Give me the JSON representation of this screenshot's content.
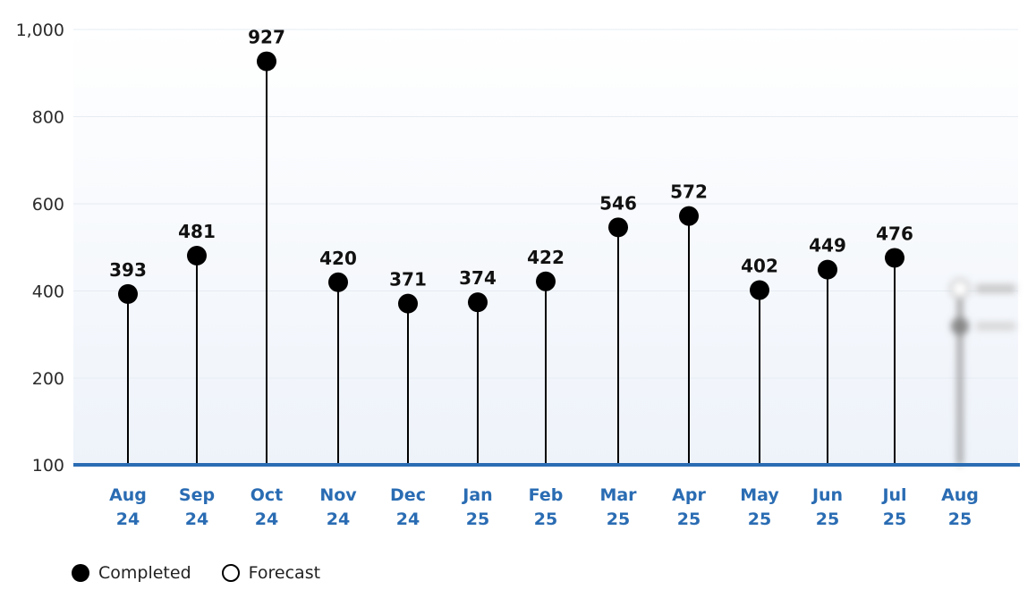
{
  "chart_data": {
    "type": "lollipop",
    "categories": [
      [
        "Aug",
        "24"
      ],
      [
        "Sep",
        "24"
      ],
      [
        "Oct",
        "24"
      ],
      [
        "Nov",
        "24"
      ],
      [
        "Dec",
        "24"
      ],
      [
        "Jan",
        "25"
      ],
      [
        "Feb",
        "25"
      ],
      [
        "Mar",
        "25"
      ],
      [
        "Apr",
        "25"
      ],
      [
        "May",
        "25"
      ],
      [
        "Jun",
        "25"
      ],
      [
        "Jul",
        "25"
      ],
      [
        "Aug",
        "25"
      ]
    ],
    "series": [
      {
        "name": "Completed",
        "values": [
          393,
          481,
          927,
          420,
          371,
          374,
          422,
          546,
          572,
          402,
          449,
          476,
          null
        ]
      }
    ],
    "forecast_blurred": {
      "category_index": 12
    },
    "y_ticks": [
      "100",
      "200",
      "400",
      "600",
      "800",
      "1,000"
    ],
    "ylim": [
      100,
      1000
    ],
    "grid": true,
    "legend": {
      "placement": "bottom-left",
      "items": [
        "Completed",
        "Forecast"
      ]
    },
    "colors": {
      "axis": "#2a6cb3",
      "marker": "#000000",
      "x_label": "#2a6cb3",
      "band": "#f3f7fc"
    }
  }
}
